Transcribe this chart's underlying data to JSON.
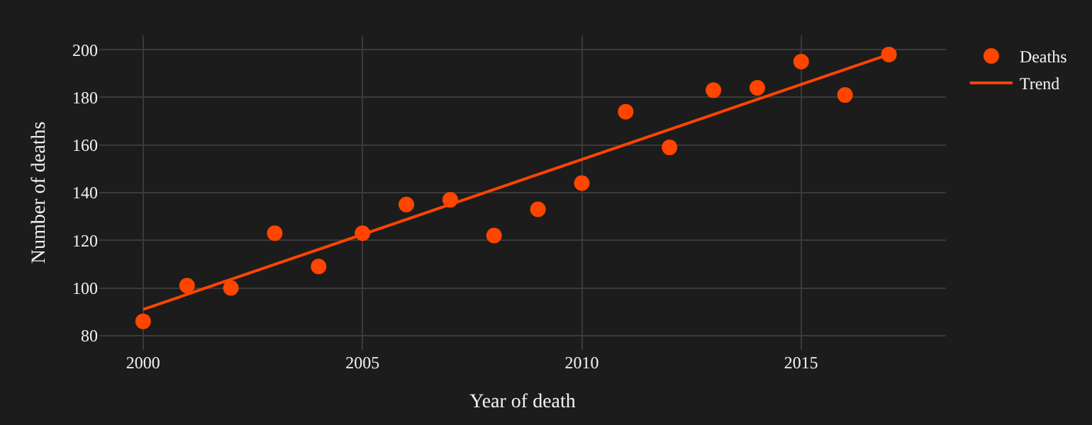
{
  "chart_data": {
    "type": "scatter",
    "xlabel": "Year of death",
    "ylabel": "Number of deaths",
    "series": [
      {
        "name": "Deaths",
        "color": "#ff4500",
        "marker": "circle",
        "x": [
          2000,
          2001,
          2002,
          2003,
          2004,
          2005,
          2006,
          2007,
          2008,
          2009,
          2010,
          2011,
          2012,
          2013,
          2014,
          2015,
          2016,
          2017
        ],
        "values": [
          86,
          101,
          100,
          123,
          109,
          123,
          135,
          137,
          122,
          133,
          144,
          174,
          159,
          183,
          184,
          195,
          181,
          198
        ]
      },
      {
        "name": "Trend",
        "type": "line",
        "color": "#ff4500",
        "marker": "none",
        "line_style": "solid",
        "x": [
          2000,
          2017
        ],
        "values": [
          91,
          198
        ]
      }
    ],
    "xlim": [
      1999,
      2018.3
    ],
    "xticks": [
      2000,
      2005,
      2010,
      2015
    ],
    "ylim": [
      74,
      206
    ],
    "yticks": [
      80,
      100,
      120,
      140,
      160,
      180,
      200
    ],
    "grid": true,
    "legend": "top right"
  }
}
